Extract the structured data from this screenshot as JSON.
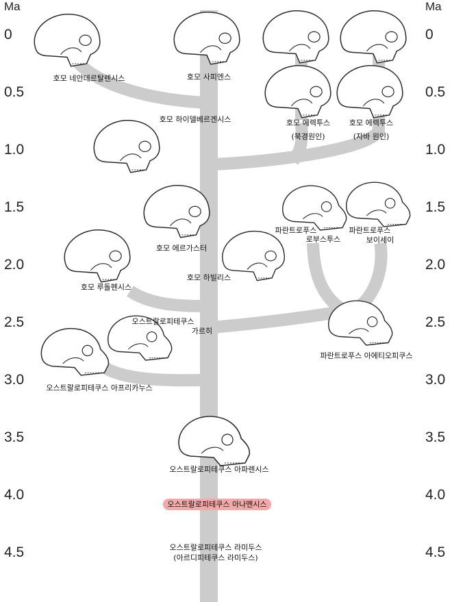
{
  "axis": {
    "unit": "Ma",
    "ticks": [
      "0",
      "0.5",
      "1.0",
      "1.5",
      "2.0",
      "2.5",
      "3.0",
      "3.5",
      "4.0",
      "4.5"
    ]
  },
  "colors": {
    "branch": "#cccccc",
    "highlight": "#f3a9a9",
    "skull_fill": "#ffffff",
    "skull_stroke": "#2b2b2b"
  },
  "species": {
    "neanderthalensis": "호모 네안데르탈렌시스",
    "sapiens": "호모 사피엔스",
    "heidelbergensis": "호모 하이델베르겐시스",
    "erectus_peking": "호모 에렉투스",
    "erectus_peking_note": "(북경원인)",
    "erectus_java": "호모 에렉투스",
    "erectus_java_note": "(자바 원인)",
    "ergaster": "호모 에르가스터",
    "habilis": "호모 하빌리스",
    "rudolfensis": "호모 루돌펜시스",
    "robustus_1": "파란트로푸스",
    "robustus_2": "로부스투스",
    "boisei_1": "파란트로푸스",
    "boisei_2": "보이세이",
    "garhi_1": "오스트랄로피테쿠스",
    "garhi_2": "가르히",
    "aethiopicus": "파란트로푸스 아에티오피쿠스",
    "africanus": "오스트랄로피테쿠스 아프리카누스",
    "afarensis": "오스트랄로피테쿠스 아파렌시스",
    "anamensis": "오스트랄로피테쿠스 아나멘시스",
    "ramidus_1": "오스트랄로피테쿠스 라미두스",
    "ramidus_2": "(아르디피테쿠스 라미두스)"
  }
}
